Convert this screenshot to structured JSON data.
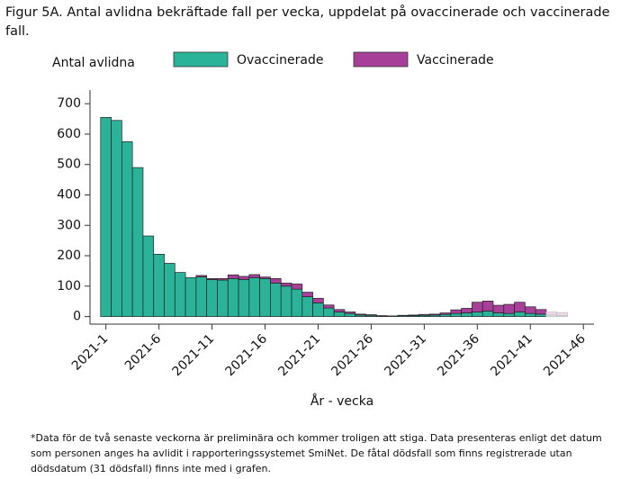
{
  "chart_data": {
    "type": "stacked_bar",
    "title": "Figur 5A. Antal avlidna bekräftade fall per vecka, uppdelat på ovaccinerade och vaccinerade fall.",
    "y_label": "Antal avlidna",
    "x_label": "År - vecka",
    "footnote": "*Data för de två senaste veckorna är preliminära och kommer troligen att stiga. Data presenteras enligt det datum som personen anges ha avlidit i rapporteringssystemet SmiNet. De fåtal dödsfall som finns registrerade utan dödsdatum (31 dödsfall) finns inte med i grafen.",
    "x": [
      1,
      2,
      3,
      4,
      5,
      6,
      7,
      8,
      9,
      10,
      11,
      12,
      13,
      14,
      15,
      16,
      17,
      18,
      19,
      20,
      21,
      22,
      23,
      24,
      25,
      26,
      27,
      28,
      29,
      30,
      31,
      32,
      33,
      34,
      35,
      36,
      37,
      38,
      39,
      40,
      41,
      42,
      43,
      44
    ],
    "series": [
      {
        "name": "Ovaccinerade",
        "color": "#2bb39a",
        "preliminary_color": "#d3efe9",
        "values": [
          655,
          645,
          575,
          490,
          265,
          205,
          175,
          145,
          128,
          130,
          122,
          120,
          125,
          122,
          128,
          125,
          110,
          100,
          90,
          65,
          45,
          28,
          15,
          10,
          5,
          4,
          2,
          2,
          3,
          3,
          4,
          5,
          7,
          10,
          12,
          15,
          18,
          12,
          10,
          15,
          10,
          8,
          5,
          3
        ]
      },
      {
        "name": "Vaccinerade",
        "color": "#a8409a",
        "preliminary_color": "#f1d9ee",
        "values": [
          0,
          0,
          0,
          0,
          0,
          0,
          0,
          0,
          0,
          5,
          3,
          5,
          12,
          10,
          10,
          5,
          15,
          10,
          17,
          15,
          15,
          10,
          8,
          5,
          3,
          2,
          1,
          0,
          1,
          2,
          3,
          3,
          5,
          12,
          15,
          32,
          33,
          25,
          30,
          32,
          22,
          15,
          10,
          10
        ]
      }
    ],
    "xlim": [
      -0.5,
      47
    ],
    "xticks": [
      {
        "value": 1,
        "label": "2021-1"
      },
      {
        "value": 6,
        "label": "2021-6"
      },
      {
        "value": 11,
        "label": "2021-11"
      },
      {
        "value": 16,
        "label": "2021-16"
      },
      {
        "value": 21,
        "label": "2021-21"
      },
      {
        "value": 26,
        "label": "2021-26"
      },
      {
        "value": 31,
        "label": "2021-31"
      },
      {
        "value": 36,
        "label": "2021-36"
      },
      {
        "value": 41,
        "label": "2021-41"
      },
      {
        "value": 46,
        "label": "2021-46"
      }
    ],
    "ylim": [
      -25,
      745
    ],
    "yticks": [
      0,
      100,
      200,
      300,
      400,
      500,
      600,
      700
    ],
    "grid": false
  }
}
